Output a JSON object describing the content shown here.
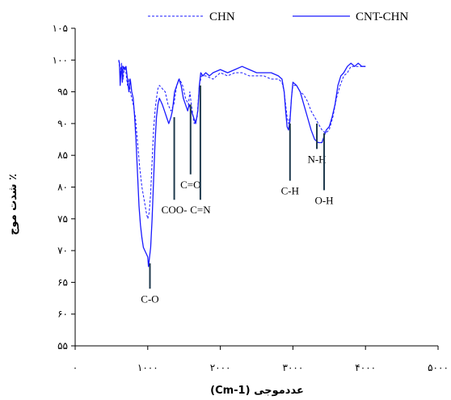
{
  "chart_data": {
    "type": "line",
    "xlabel": "(Cm-1) عددموجی",
    "ylabel": "شدت موج ٪",
    "xlim": [
      0,
      5000
    ],
    "ylim": [
      55,
      105
    ],
    "x_ticks": [
      {
        "value": 0,
        "label": "۰"
      },
      {
        "value": 1000,
        "label": "۱۰۰۰"
      },
      {
        "value": 2000,
        "label": "۲۰۰۰"
      },
      {
        "value": 3000,
        "label": "۳۰۰۰"
      },
      {
        "value": 4000,
        "label": "۴۰۰۰"
      },
      {
        "value": 5000,
        "label": "۵۰۰۰"
      }
    ],
    "y_ticks": [
      {
        "value": 55,
        "label": "۵۵"
      },
      {
        "value": 60,
        "label": "۶۰"
      },
      {
        "value": 65,
        "label": "۶۵"
      },
      {
        "value": 70,
        "label": "۷۰"
      },
      {
        "value": 75,
        "label": "۷۵"
      },
      {
        "value": 80,
        "label": "۸۰"
      },
      {
        "value": 85,
        "label": "۸۵"
      },
      {
        "value": 90,
        "label": "۹۰"
      },
      {
        "value": 95,
        "label": "۹۵"
      },
      {
        "value": 100,
        "label": "۱۰۰"
      },
      {
        "value": 105,
        "label": "۱۰۵"
      }
    ],
    "grid": false,
    "legend_position": "top",
    "series": [
      {
        "name": "CHN",
        "style": "dashed",
        "color": "#1a1aff",
        "points": [
          [
            600,
            100
          ],
          [
            620,
            98
          ],
          [
            640,
            99.5
          ],
          [
            660,
            97
          ],
          [
            680,
            99
          ],
          [
            700,
            98
          ],
          [
            720,
            96
          ],
          [
            740,
            97
          ],
          [
            760,
            95
          ],
          [
            780,
            94
          ],
          [
            800,
            93
          ],
          [
            830,
            91
          ],
          [
            860,
            87
          ],
          [
            890,
            83
          ],
          [
            920,
            80
          ],
          [
            950,
            78
          ],
          [
            980,
            76
          ],
          [
            1000,
            75
          ],
          [
            1020,
            76
          ],
          [
            1040,
            79
          ],
          [
            1060,
            84
          ],
          [
            1080,
            89
          ],
          [
            1100,
            92
          ],
          [
            1120,
            94
          ],
          [
            1140,
            95.5
          ],
          [
            1160,
            96
          ],
          [
            1200,
            95.5
          ],
          [
            1240,
            95
          ],
          [
            1280,
            93
          ],
          [
            1320,
            92
          ],
          [
            1360,
            93
          ],
          [
            1400,
            96
          ],
          [
            1440,
            97
          ],
          [
            1480,
            96
          ],
          [
            1520,
            94
          ],
          [
            1560,
            93
          ],
          [
            1580,
            95
          ],
          [
            1600,
            93
          ],
          [
            1640,
            90
          ],
          [
            1680,
            91
          ],
          [
            1710,
            96
          ],
          [
            1740,
            97.5
          ],
          [
            1800,
            97.5
          ],
          [
            1900,
            97
          ],
          [
            2000,
            98
          ],
          [
            2100,
            97.5
          ],
          [
            2200,
            98
          ],
          [
            2300,
            98
          ],
          [
            2400,
            97.5
          ],
          [
            2500,
            97.5
          ],
          [
            2600,
            97.5
          ],
          [
            2700,
            97
          ],
          [
            2800,
            97
          ],
          [
            2850,
            96.5
          ],
          [
            2880,
            95
          ],
          [
            2900,
            93
          ],
          [
            2920,
            91
          ],
          [
            2940,
            90
          ],
          [
            2960,
            91
          ],
          [
            2980,
            94
          ],
          [
            3000,
            96
          ],
          [
            3050,
            96
          ],
          [
            3100,
            95
          ],
          [
            3150,
            94.5
          ],
          [
            3200,
            93.5
          ],
          [
            3250,
            92
          ],
          [
            3300,
            91
          ],
          [
            3350,
            90
          ],
          [
            3400,
            89
          ],
          [
            3450,
            88.5
          ],
          [
            3500,
            89
          ],
          [
            3550,
            91
          ],
          [
            3600,
            94
          ],
          [
            3650,
            96
          ],
          [
            3700,
            97.5
          ],
          [
            3750,
            98
          ],
          [
            3800,
            99
          ],
          [
            3900,
            99
          ],
          [
            4000,
            99
          ]
        ]
      },
      {
        "name": "CNT-CHN",
        "style": "solid",
        "color": "#1a1aff",
        "points": [
          [
            600,
            100
          ],
          [
            610,
            99.5
          ],
          [
            620,
            96
          ],
          [
            630,
            98
          ],
          [
            640,
            99
          ],
          [
            650,
            96.5
          ],
          [
            660,
            99
          ],
          [
            680,
            98.5
          ],
          [
            700,
            99
          ],
          [
            720,
            97
          ],
          [
            740,
            95
          ],
          [
            760,
            97
          ],
          [
            780,
            95
          ],
          [
            800,
            94
          ],
          [
            820,
            91
          ],
          [
            840,
            87
          ],
          [
            860,
            82
          ],
          [
            880,
            77
          ],
          [
            900,
            74
          ],
          [
            920,
            72
          ],
          [
            940,
            70.5
          ],
          [
            960,
            70
          ],
          [
            980,
            69.5
          ],
          [
            1000,
            69
          ],
          [
            1010,
            67.5
          ],
          [
            1020,
            68.5
          ],
          [
            1040,
            70.5
          ],
          [
            1060,
            75
          ],
          [
            1080,
            81
          ],
          [
            1100,
            87
          ],
          [
            1120,
            91
          ],
          [
            1140,
            93
          ],
          [
            1160,
            94
          ],
          [
            1180,
            93.5
          ],
          [
            1200,
            93
          ],
          [
            1230,
            92
          ],
          [
            1260,
            91
          ],
          [
            1290,
            90
          ],
          [
            1320,
            91
          ],
          [
            1340,
            92
          ],
          [
            1370,
            95
          ],
          [
            1400,
            96
          ],
          [
            1430,
            97
          ],
          [
            1460,
            96
          ],
          [
            1490,
            94
          ],
          [
            1520,
            93
          ],
          [
            1550,
            92
          ],
          [
            1570,
            93
          ],
          [
            1600,
            92
          ],
          [
            1630,
            91
          ],
          [
            1660,
            90
          ],
          [
            1690,
            92
          ],
          [
            1710,
            96
          ],
          [
            1730,
            98
          ],
          [
            1760,
            97.5
          ],
          [
            1800,
            98
          ],
          [
            1850,
            97.5
          ],
          [
            1900,
            98
          ],
          [
            2000,
            98.5
          ],
          [
            2100,
            98
          ],
          [
            2200,
            98.5
          ],
          [
            2300,
            99
          ],
          [
            2400,
            98.5
          ],
          [
            2500,
            98
          ],
          [
            2600,
            98
          ],
          [
            2700,
            98
          ],
          [
            2800,
            97.5
          ],
          [
            2850,
            97
          ],
          [
            2880,
            95
          ],
          [
            2900,
            92
          ],
          [
            2920,
            89.5
          ],
          [
            2940,
            89
          ],
          [
            2960,
            90.5
          ],
          [
            2980,
            94
          ],
          [
            3000,
            96.5
          ],
          [
            3050,
            96
          ],
          [
            3100,
            95
          ],
          [
            3150,
            93
          ],
          [
            3200,
            91
          ],
          [
            3250,
            89
          ],
          [
            3300,
            87.5
          ],
          [
            3350,
            87
          ],
          [
            3400,
            87
          ],
          [
            3430,
            88
          ],
          [
            3460,
            89
          ],
          [
            3500,
            89.5
          ],
          [
            3540,
            91
          ],
          [
            3580,
            93
          ],
          [
            3620,
            96
          ],
          [
            3660,
            97.5
          ],
          [
            3700,
            98
          ],
          [
            3750,
            99
          ],
          [
            3800,
            99.5
          ],
          [
            3850,
            99
          ],
          [
            3900,
            99.5
          ],
          [
            3950,
            99
          ],
          [
            4000,
            99
          ]
        ]
      }
    ],
    "annotations": [
      {
        "label": "C-O",
        "x": 1030,
        "y_top": 68,
        "y_bottom": 64
      },
      {
        "label": "COO-",
        "x": 1365,
        "y_top": 91,
        "y_bottom": 78
      },
      {
        "label": "C=O",
        "x": 1590,
        "y_top": 93,
        "y_bottom": 82
      },
      {
        "label": "C=N",
        "x": 1725,
        "y_top": 96,
        "y_bottom": 78
      },
      {
        "label": "C-H",
        "x": 2960,
        "y_top": 90,
        "y_bottom": 81
      },
      {
        "label": "N-H",
        "x": 3330,
        "y_top": 90,
        "y_bottom": 86
      },
      {
        "label": "O-H",
        "x": 3430,
        "y_top": 88.5,
        "y_bottom": 79.5
      }
    ]
  }
}
